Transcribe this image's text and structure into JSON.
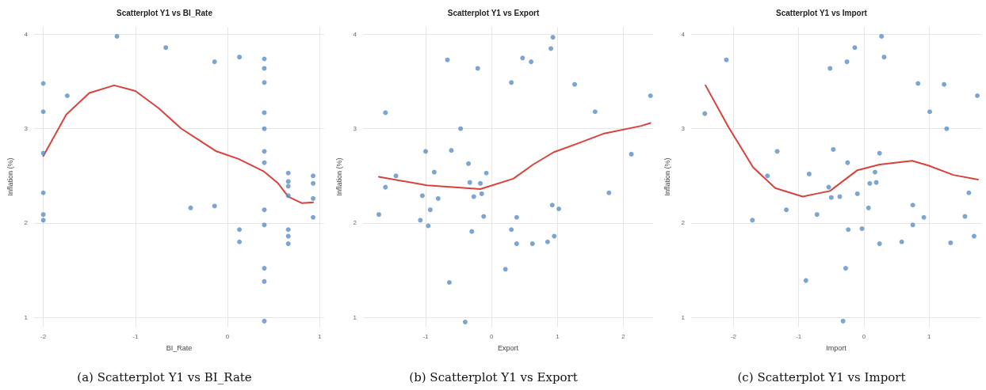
{
  "chart_data": [
    {
      "type": "scatter",
      "title": "Scatterplot Y1 vs BI_Rate",
      "xlabel": "BI_Rate",
      "ylabel": "Inflation (%)",
      "annotations": [
        "(a) Scatterplot Y1 vs BI_Rate"
      ],
      "xlim": [
        -2.1,
        1.05
      ],
      "xticks": [
        -2,
        -1,
        0,
        1
      ],
      "ylim": [
        0.9,
        4.08
      ],
      "yticks": [
        1,
        2,
        3,
        4
      ],
      "grid": true,
      "marker": "circle",
      "series": [
        {
          "color": "#5b8fc7",
          "x": [
            -2,
            -2,
            -2,
            -2,
            -2,
            -2,
            -1.74,
            -1.2,
            -0.67,
            -0.4,
            -0.14,
            -0.14,
            0.13,
            0.13,
            0.13,
            0.4,
            0.4,
            0.4,
            0.4,
            0.4,
            0.4,
            0.4,
            0.4,
            0.4,
            0.4,
            0.4,
            0.4,
            0.66,
            0.66,
            0.66,
            0.66,
            0.66,
            0.66,
            0.66,
            0.93,
            0.93,
            0.93,
            0.93
          ],
          "values": [
            3.48,
            3.18,
            2.74,
            2.32,
            2.09,
            2.03,
            3.35,
            3.98,
            3.86,
            2.16,
            3.71,
            2.18,
            3.76,
            1.93,
            1.8,
            3.74,
            3.64,
            3.49,
            3.17,
            3.0,
            2.76,
            2.64,
            2.14,
            1.98,
            1.52,
            1.38,
            0.96,
            2.53,
            2.44,
            2.39,
            2.29,
            1.93,
            1.86,
            1.78,
            2.5,
            2.42,
            2.26,
            2.06
          ]
        },
        {
          "type": "line",
          "color": "#d9413b",
          "marker": "none",
          "x": [
            -2,
            -1.75,
            -1.5,
            -1.23,
            -1,
            -0.75,
            -0.5,
            -0.12,
            0.12,
            0.39,
            0.55,
            0.66,
            0.81,
            0.93
          ],
          "values": [
            2.71,
            3.15,
            3.38,
            3.46,
            3.4,
            3.22,
            3.0,
            2.76,
            2.68,
            2.55,
            2.42,
            2.28,
            2.21,
            2.22
          ]
        }
      ]
    },
    {
      "type": "scatter",
      "title": "Scatterplot Y1 vs Export",
      "xlabel": "Export",
      "ylabel": "Inflation (%)",
      "annotations": [
        "(b) Scatterplot Y1 vs Export"
      ],
      "xlim": [
        -1.95,
        2.45
      ],
      "xticks": [
        -1,
        0,
        1,
        2
      ],
      "ylim": [
        0.9,
        4.08
      ],
      "yticks": [
        1,
        2,
        3,
        4
      ],
      "grid": true,
      "marker": "circle",
      "series": [
        {
          "color": "#5b8fc7",
          "x": [
            -1.71,
            -1.61,
            -1.61,
            -1.45,
            -1.08,
            -1.05,
            -1.0,
            -0.96,
            -0.93,
            -0.87,
            -0.81,
            -0.67,
            -0.64,
            -0.61,
            -0.47,
            -0.4,
            -0.35,
            -0.33,
            -0.3,
            -0.27,
            -0.21,
            -0.17,
            -0.15,
            -0.12,
            -0.08,
            0.21,
            0.3,
            0.3,
            0.38,
            0.38,
            0.47,
            0.6,
            0.62,
            0.85,
            0.9,
            0.93,
            0.92,
            0.95,
            1.02,
            1.26,
            1.57,
            1.78,
            2.12,
            2.41
          ],
          "values": [
            2.09,
            3.17,
            2.38,
            2.5,
            2.03,
            2.29,
            2.76,
            1.97,
            2.14,
            2.54,
            2.26,
            3.73,
            1.37,
            2.77,
            3.0,
            0.95,
            2.63,
            2.43,
            1.91,
            2.28,
            3.64,
            2.42,
            2.31,
            2.07,
            2.53,
            1.51,
            3.49,
            1.93,
            2.06,
            1.78,
            3.75,
            3.71,
            1.78,
            1.8,
            3.85,
            3.97,
            2.19,
            1.86,
            2.15,
            3.47,
            3.18,
            2.32,
            2.73,
            3.35
          ]
        },
        {
          "type": "line",
          "color": "#d9413b",
          "marker": "none",
          "x": [
            -1.71,
            -0.98,
            -0.17,
            0.33,
            0.63,
            0.94,
            1.33,
            1.71,
            2.27,
            2.41
          ],
          "values": [
            2.49,
            2.4,
            2.36,
            2.47,
            2.62,
            2.75,
            2.85,
            2.95,
            3.03,
            3.06
          ]
        }
      ]
    },
    {
      "type": "scatter",
      "title": "Scatterplot Y1 vs Import",
      "xlabel": "Import",
      "ylabel": "Inflation (%)",
      "annotations": [
        "(c) Scatterplot Y1 vs Import"
      ],
      "xlim": [
        -2.65,
        1.8
      ],
      "xticks": [
        -2,
        -1,
        0,
        1
      ],
      "ylim": [
        0.9,
        4.08
      ],
      "yticks": [
        1,
        2,
        3,
        4
      ],
      "grid": true,
      "marker": "circle",
      "series": [
        {
          "color": "#5b8fc7",
          "x": [
            -2.44,
            -2.11,
            -1.71,
            -1.48,
            -1.33,
            -1.19,
            -0.89,
            -0.84,
            -0.72,
            -0.54,
            -0.52,
            -0.5,
            -0.47,
            -0.37,
            -0.32,
            -0.28,
            -0.26,
            -0.25,
            -0.24,
            -0.14,
            -0.1,
            -0.03,
            0.07,
            0.09,
            0.17,
            0.19,
            0.24,
            0.24,
            0.27,
            0.31,
            0.58,
            0.75,
            0.75,
            0.83,
            0.92,
            1.01,
            1.23,
            1.27,
            1.33,
            1.55,
            1.61,
            1.69,
            1.74
          ],
          "values": [
            3.16,
            3.73,
            2.03,
            2.5,
            2.76,
            2.14,
            1.39,
            2.52,
            2.09,
            2.38,
            3.64,
            2.27,
            2.78,
            2.28,
            0.96,
            1.52,
            3.71,
            2.64,
            1.93,
            3.86,
            2.31,
            1.94,
            2.16,
            2.42,
            2.54,
            2.43,
            2.74,
            1.78,
            3.98,
            3.76,
            1.8,
            2.19,
            1.98,
            3.48,
            2.06,
            3.18,
            3.47,
            3.0,
            1.79,
            2.07,
            2.32,
            1.86,
            3.35
          ]
        },
        {
          "type": "line",
          "color": "#d9413b",
          "marker": "none",
          "x": [
            -2.43,
            -2.08,
            -1.7,
            -1.36,
            -0.94,
            -0.52,
            -0.1,
            0.24,
            0.74,
            0.99,
            1.37,
            1.75
          ],
          "values": [
            3.46,
            3.02,
            2.59,
            2.37,
            2.28,
            2.34,
            2.56,
            2.62,
            2.66,
            2.61,
            2.51,
            2.46
          ]
        }
      ]
    }
  ]
}
